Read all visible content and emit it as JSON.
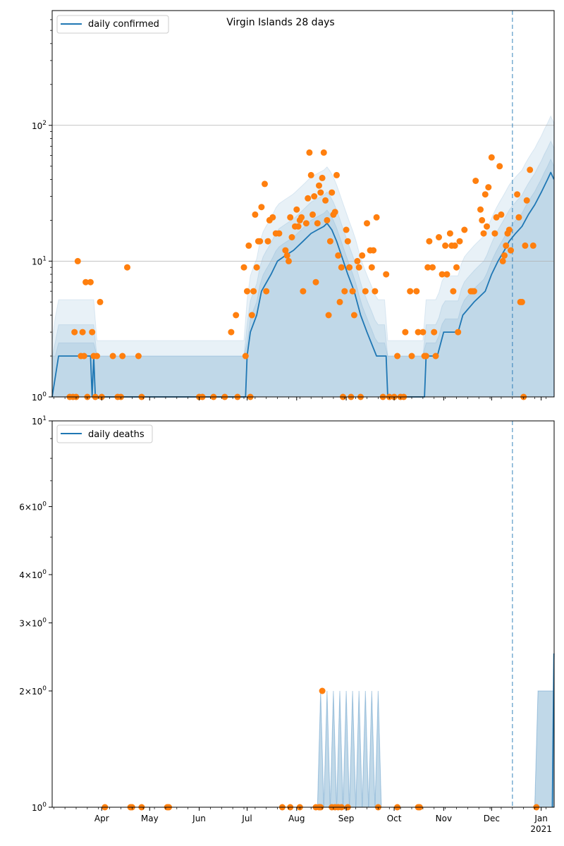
{
  "colors": {
    "line": "#1f77b4",
    "dots": "#ff7f0e",
    "band": "#1f77b4",
    "grid": "#b0b0b0"
  },
  "chart_data": [
    {
      "type": "line",
      "title": "Virgin Islands 28 days",
      "scale": "log",
      "ylim": [
        1,
        700
      ],
      "xlim": [
        "2020-03-01",
        "2021-01-09"
      ],
      "grid": "y-major",
      "legend": "top-left",
      "y_ticks": [
        "10^0",
        "10^1",
        "10^2"
      ],
      "x_ticks": [
        "Apr",
        "May",
        "Jun",
        "Jul",
        "Aug",
        "Sep",
        "Oct",
        "Nov",
        "Dec",
        "Jan\n2021"
      ],
      "vline": "2020-12-14",
      "series": [
        {
          "name": "daily confirmed",
          "kind": "line",
          "points": [
            [
              "2020-03-01",
              1
            ],
            [
              "2020-03-05",
              2
            ],
            [
              "2020-03-25",
              2
            ],
            [
              "2020-03-26",
              1
            ],
            [
              "2020-03-27",
              2
            ],
            [
              "2020-03-28",
              1
            ],
            [
              "2020-06-30",
              1
            ],
            [
              "2020-07-01",
              2
            ],
            [
              "2020-07-03",
              3
            ],
            [
              "2020-07-07",
              4
            ],
            [
              "2020-07-10",
              6
            ],
            [
              "2020-07-16",
              8
            ],
            [
              "2020-07-20",
              10
            ],
            [
              "2020-07-25",
              11
            ],
            [
              "2020-07-30",
              12
            ],
            [
              "2020-08-05",
              14
            ],
            [
              "2020-08-10",
              16
            ],
            [
              "2020-08-14",
              17
            ],
            [
              "2020-08-18",
              18
            ],
            [
              "2020-08-20",
              19
            ],
            [
              "2020-08-23",
              17
            ],
            [
              "2020-08-26",
              14
            ],
            [
              "2020-08-29",
              11
            ],
            [
              "2020-09-02",
              8
            ],
            [
              "2020-09-06",
              6
            ],
            [
              "2020-09-10",
              4
            ],
            [
              "2020-09-14",
              3
            ],
            [
              "2020-09-20",
              2
            ],
            [
              "2020-09-26",
              2
            ],
            [
              "2020-09-27",
              1
            ],
            [
              "2020-10-20",
              1
            ],
            [
              "2020-10-21",
              2
            ],
            [
              "2020-10-28",
              2
            ],
            [
              "2020-11-01",
              3
            ],
            [
              "2020-11-10",
              3
            ],
            [
              "2020-11-13",
              4
            ],
            [
              "2020-11-20",
              5
            ],
            [
              "2020-11-27",
              6
            ],
            [
              "2020-12-01",
              8
            ],
            [
              "2020-12-05",
              10
            ],
            [
              "2020-12-09",
              12
            ],
            [
              "2020-12-12",
              14
            ],
            [
              "2020-12-16",
              16
            ],
            [
              "2020-12-20",
              18
            ],
            [
              "2020-12-24",
              22
            ],
            [
              "2020-12-28",
              26
            ],
            [
              "2021-01-01",
              32
            ],
            [
              "2021-01-05",
              40
            ],
            [
              "2021-01-07",
              45
            ],
            [
              "2021-01-09",
              40
            ]
          ]
        },
        {
          "kind": "scatter",
          "points": [
            [
              "2020-03-12",
              1
            ],
            [
              "2020-03-14",
              1
            ],
            [
              "2020-03-15",
              3
            ],
            [
              "2020-03-16",
              1
            ],
            [
              "2020-03-17",
              10
            ],
            [
              "2020-03-19",
              2
            ],
            [
              "2020-03-20",
              3
            ],
            [
              "2020-03-21",
              2
            ],
            [
              "2020-03-22",
              7
            ],
            [
              "2020-03-23",
              1
            ],
            [
              "2020-03-25",
              7
            ],
            [
              "2020-03-26",
              3
            ],
            [
              "2020-03-27",
              2
            ],
            [
              "2020-03-28",
              1
            ],
            [
              "2020-03-29",
              2
            ],
            [
              "2020-03-31",
              5
            ],
            [
              "2020-04-01",
              1
            ],
            [
              "2020-04-08",
              2
            ],
            [
              "2020-04-11",
              1
            ],
            [
              "2020-04-13",
              1
            ],
            [
              "2020-04-14",
              2
            ],
            [
              "2020-04-17",
              9
            ],
            [
              "2020-04-24",
              2
            ],
            [
              "2020-04-26",
              1
            ],
            [
              "2020-06-01",
              1
            ],
            [
              "2020-06-03",
              1
            ],
            [
              "2020-06-10",
              1
            ],
            [
              "2020-06-17",
              1
            ],
            [
              "2020-06-21",
              3
            ],
            [
              "2020-06-24",
              4
            ],
            [
              "2020-06-25",
              1
            ],
            [
              "2020-06-29",
              9
            ],
            [
              "2020-06-30",
              2
            ],
            [
              "2020-07-01",
              6
            ],
            [
              "2020-07-02",
              13
            ],
            [
              "2020-07-03",
              1
            ],
            [
              "2020-07-04",
              4
            ],
            [
              "2020-07-05",
              6
            ],
            [
              "2020-07-06",
              22
            ],
            [
              "2020-07-07",
              9
            ],
            [
              "2020-07-08",
              14
            ],
            [
              "2020-07-09",
              14
            ],
            [
              "2020-07-10",
              25
            ],
            [
              "2020-07-12",
              37
            ],
            [
              "2020-07-13",
              6
            ],
            [
              "2020-07-14",
              14
            ],
            [
              "2020-07-15",
              20
            ],
            [
              "2020-07-17",
              21
            ],
            [
              "2020-07-19",
              16
            ],
            [
              "2020-07-21",
              16
            ],
            [
              "2020-07-25",
              12
            ],
            [
              "2020-07-26",
              11
            ],
            [
              "2020-07-27",
              10
            ],
            [
              "2020-07-28",
              21
            ],
            [
              "2020-07-29",
              15
            ],
            [
              "2020-07-31",
              18
            ],
            [
              "2020-08-01",
              24
            ],
            [
              "2020-08-02",
              18
            ],
            [
              "2020-08-03",
              20
            ],
            [
              "2020-08-04",
              21
            ],
            [
              "2020-08-05",
              6
            ],
            [
              "2020-08-07",
              19
            ],
            [
              "2020-08-08",
              29
            ],
            [
              "2020-08-09",
              63
            ],
            [
              "2020-08-10",
              43
            ],
            [
              "2020-08-11",
              22
            ],
            [
              "2020-08-12",
              30
            ],
            [
              "2020-08-13",
              7
            ],
            [
              "2020-08-14",
              19
            ],
            [
              "2020-08-15",
              36
            ],
            [
              "2020-08-16",
              32
            ],
            [
              "2020-08-17",
              41
            ],
            [
              "2020-08-18",
              63
            ],
            [
              "2020-08-19",
              28
            ],
            [
              "2020-08-20",
              20
            ],
            [
              "2020-08-21",
              4
            ],
            [
              "2020-08-22",
              14
            ],
            [
              "2020-08-23",
              32
            ],
            [
              "2020-08-24",
              22
            ],
            [
              "2020-08-25",
              23
            ],
            [
              "2020-08-26",
              43
            ],
            [
              "2020-08-27",
              11
            ],
            [
              "2020-08-28",
              5
            ],
            [
              "2020-08-29",
              9
            ],
            [
              "2020-08-30",
              1
            ],
            [
              "2020-08-31",
              6
            ],
            [
              "2020-09-01",
              17
            ],
            [
              "2020-09-02",
              14
            ],
            [
              "2020-09-03",
              9
            ],
            [
              "2020-09-04",
              1
            ],
            [
              "2020-09-05",
              6
            ],
            [
              "2020-09-06",
              4
            ],
            [
              "2020-09-08",
              10
            ],
            [
              "2020-09-09",
              9
            ],
            [
              "2020-09-10",
              1
            ],
            [
              "2020-09-11",
              11
            ],
            [
              "2020-09-13",
              6
            ],
            [
              "2020-09-14",
              19
            ],
            [
              "2020-09-16",
              12
            ],
            [
              "2020-09-17",
              9
            ],
            [
              "2020-09-18",
              12
            ],
            [
              "2020-09-19",
              6
            ],
            [
              "2020-09-20",
              21
            ],
            [
              "2020-09-24",
              1
            ],
            [
              "2020-09-26",
              8
            ],
            [
              "2020-09-28",
              1
            ],
            [
              "2020-10-01",
              1
            ],
            [
              "2020-10-03",
              2
            ],
            [
              "2020-10-05",
              1
            ],
            [
              "2020-10-07",
              1
            ],
            [
              "2020-10-08",
              3
            ],
            [
              "2020-10-11",
              6
            ],
            [
              "2020-10-12",
              2
            ],
            [
              "2020-10-15",
              6
            ],
            [
              "2020-10-16",
              3
            ],
            [
              "2020-10-19",
              3
            ],
            [
              "2020-10-20",
              2
            ],
            [
              "2020-10-21",
              2
            ],
            [
              "2020-10-22",
              9
            ],
            [
              "2020-10-23",
              14
            ],
            [
              "2020-10-25",
              9
            ],
            [
              "2020-10-26",
              3
            ],
            [
              "2020-10-27",
              2
            ],
            [
              "2020-10-29",
              15
            ],
            [
              "2020-10-31",
              8
            ],
            [
              "2020-11-02",
              13
            ],
            [
              "2020-11-03",
              8
            ],
            [
              "2020-11-05",
              16
            ],
            [
              "2020-11-06",
              13
            ],
            [
              "2020-11-07",
              6
            ],
            [
              "2020-11-08",
              13
            ],
            [
              "2020-11-09",
              9
            ],
            [
              "2020-11-10",
              3
            ],
            [
              "2020-11-11",
              14
            ],
            [
              "2020-11-14",
              17
            ],
            [
              "2020-11-18",
              6
            ],
            [
              "2020-11-19",
              6
            ],
            [
              "2020-11-20",
              6
            ],
            [
              "2020-11-21",
              39
            ],
            [
              "2020-11-24",
              24
            ],
            [
              "2020-11-25",
              20
            ],
            [
              "2020-11-26",
              16
            ],
            [
              "2020-11-27",
              31
            ],
            [
              "2020-11-28",
              18
            ],
            [
              "2020-11-29",
              35
            ],
            [
              "2020-12-01",
              58
            ],
            [
              "2020-12-03",
              16
            ],
            [
              "2020-12-04",
              21
            ],
            [
              "2020-12-06",
              50
            ],
            [
              "2020-12-07",
              22
            ],
            [
              "2020-12-08",
              10
            ],
            [
              "2020-12-09",
              11
            ],
            [
              "2020-12-10",
              13
            ],
            [
              "2020-12-11",
              16
            ],
            [
              "2020-12-12",
              17
            ],
            [
              "2020-12-13",
              12
            ],
            [
              "2020-12-17",
              31
            ],
            [
              "2020-12-18",
              21
            ],
            [
              "2020-12-19",
              5
            ],
            [
              "2020-12-20",
              5
            ],
            [
              "2020-12-21",
              1
            ],
            [
              "2020-12-22",
              13
            ],
            [
              "2020-12-23",
              28
            ],
            [
              "2020-12-25",
              47
            ],
            [
              "2020-12-27",
              13
            ]
          ]
        }
      ]
    },
    {
      "type": "line",
      "scale": "log",
      "ylim": [
        1,
        10
      ],
      "xlim": [
        "2020-03-01",
        "2021-01-09"
      ],
      "grid": "none",
      "legend": "top-left",
      "y_ticks": [
        "10^0",
        "2x10^0",
        "3x10^0",
        "4x10^0",
        "6x10^0",
        "10^1"
      ],
      "x_ticks": [
        "Apr",
        "May",
        "Jun",
        "Jul",
        "Aug",
        "Sep",
        "Oct",
        "Nov",
        "Dec",
        "Jan\n2021"
      ],
      "vline": "2020-12-14",
      "series": [
        {
          "name": "daily deaths",
          "kind": "line",
          "points": [
            [
              "2021-01-08",
              1
            ],
            [
              "2021-01-09",
              2.5
            ]
          ]
        },
        {
          "kind": "scatter",
          "points": [
            [
              "2020-04-03",
              1
            ],
            [
              "2020-04-19",
              1
            ],
            [
              "2020-04-20",
              1
            ],
            [
              "2020-04-26",
              1
            ],
            [
              "2020-05-12",
              1
            ],
            [
              "2020-05-13",
              1
            ],
            [
              "2020-07-23",
              1
            ],
            [
              "2020-07-28",
              1
            ],
            [
              "2020-08-03",
              1
            ],
            [
              "2020-08-13",
              1
            ],
            [
              "2020-08-15",
              1
            ],
            [
              "2020-08-16",
              1
            ],
            [
              "2020-08-17",
              2
            ],
            [
              "2020-08-23",
              1
            ],
            [
              "2020-08-25",
              1
            ],
            [
              "2020-08-27",
              1
            ],
            [
              "2020-08-29",
              1
            ],
            [
              "2020-09-02",
              1
            ],
            [
              "2020-09-21",
              1
            ],
            [
              "2020-10-03",
              1
            ],
            [
              "2020-10-16",
              1
            ],
            [
              "2020-10-17",
              1
            ],
            [
              "2020-12-29",
              1
            ]
          ]
        }
      ]
    }
  ]
}
